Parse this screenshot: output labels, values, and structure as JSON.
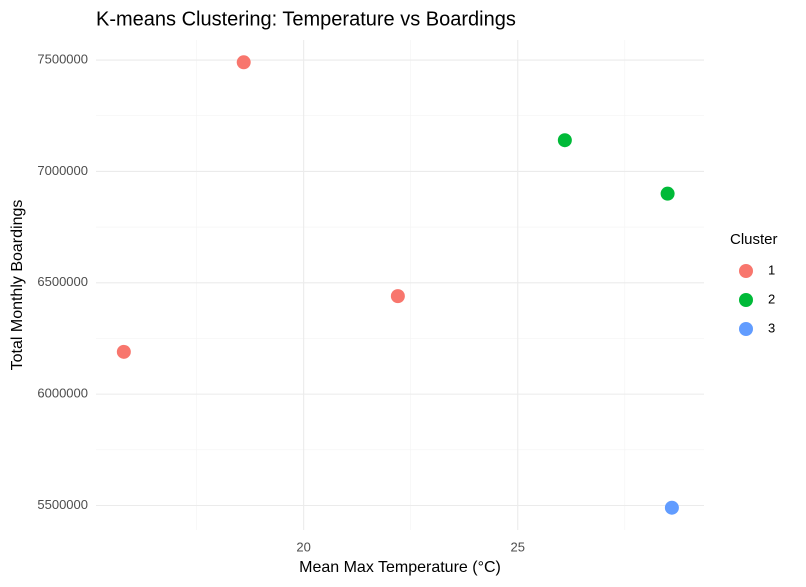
{
  "chart_data": {
    "type": "scatter",
    "title": "K-means Clustering: Temperature vs Boardings",
    "x_label": "Mean Max Temperature (°C)",
    "y_label": "Total Monthly Boardings",
    "legend_title": "Cluster",
    "legend_position": "right",
    "series": [
      {
        "name": "1",
        "color": "#F8766D",
        "x": [
          15.8,
          18.6,
          22.2
        ],
        "values": [
          6190000,
          7490000,
          6440000
        ]
      },
      {
        "name": "2",
        "color": "#00BA38",
        "x": [
          26.1,
          28.5
        ],
        "values": [
          7140000,
          6900000
        ]
      },
      {
        "name": "3",
        "color": "#619CFF",
        "x": [
          28.6
        ],
        "values": [
          5490000
        ]
      }
    ],
    "xlim": [
      15.15,
      29.35
    ],
    "xticks": [
      20,
      25
    ],
    "ylim": [
      5390000,
      7590000
    ],
    "yticks": [
      5500000,
      6000000,
      6500000,
      7000000,
      7500000
    ],
    "x_minor_gridlines": [
      17.5,
      22.5,
      27.5
    ],
    "y_minor_gridlines": [
      5750000,
      6250000,
      6750000,
      7250000
    ],
    "grid": true
  }
}
